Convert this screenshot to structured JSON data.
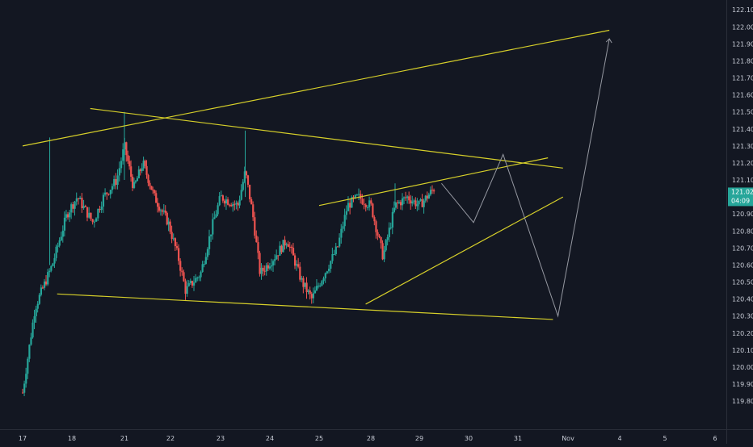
{
  "chart_data": {
    "type": "candlestick",
    "instrument_timeframe": "hourly",
    "ylim": [
      119.72,
      122.12
    ],
    "y_ticks": [
      "122.100",
      "122.000",
      "121.900",
      "121.800",
      "121.700",
      "121.600",
      "121.500",
      "121.400",
      "121.300",
      "121.200",
      "121.100",
      "121.000",
      "120.900",
      "120.800",
      "120.700",
      "120.600",
      "120.500",
      "120.400",
      "120.300",
      "120.200",
      "120.100",
      "120.000",
      "119.900",
      "119.800"
    ],
    "x_ticks": [
      {
        "label": "17",
        "day": 0
      },
      {
        "label": "18",
        "day": 1
      },
      {
        "label": "21",
        "day": 2
      },
      {
        "label": "22",
        "day": 3
      },
      {
        "label": "23",
        "day": 4
      },
      {
        "label": "24",
        "day": 5
      },
      {
        "label": "25",
        "day": 6
      },
      {
        "label": "28",
        "day": 7
      },
      {
        "label": "29",
        "day": 8
      },
      {
        "label": "30",
        "day": 9
      },
      {
        "label": "31",
        "day": 10
      },
      {
        "label": "Nov",
        "day": 11
      },
      {
        "label": "4",
        "day": 12
      },
      {
        "label": "5",
        "day": 13
      },
      {
        "label": "6",
        "day": 14
      }
    ],
    "current_price": {
      "value": "121.027",
      "countdown": "04:09",
      "y": 121.027
    },
    "colors": {
      "background": "#131722",
      "up": "#26a69a",
      "down": "#ef5350",
      "trendline": "#d6cf2a",
      "projection": "#9598a1",
      "axis_text": "#c8ccd6",
      "badge": "#26a69a"
    },
    "key_points": [
      {
        "day": 0.0,
        "price": 119.85
      },
      {
        "day": 0.25,
        "price": 120.35
      },
      {
        "day": 0.6,
        "price": 120.6
      },
      {
        "day": 0.9,
        "price": 120.9
      },
      {
        "day": 1.1,
        "price": 121.0
      },
      {
        "day": 1.4,
        "price": 120.85
      },
      {
        "day": 1.6,
        "price": 121.0
      },
      {
        "day": 1.85,
        "price": 121.1
      },
      {
        "day": 2.0,
        "price": 121.3
      },
      {
        "day": 2.2,
        "price": 121.05
      },
      {
        "day": 2.4,
        "price": 121.2
      },
      {
        "day": 2.65,
        "price": 121.0
      },
      {
        "day": 2.95,
        "price": 120.85
      },
      {
        "day": 3.15,
        "price": 120.65
      },
      {
        "day": 3.3,
        "price": 120.45
      },
      {
        "day": 3.6,
        "price": 120.55
      },
      {
        "day": 3.85,
        "price": 120.85
      },
      {
        "day": 4.0,
        "price": 121.0
      },
      {
        "day": 4.35,
        "price": 120.95
      },
      {
        "day": 4.5,
        "price": 121.15
      },
      {
        "day": 4.65,
        "price": 120.9
      },
      {
        "day": 4.8,
        "price": 120.55
      },
      {
        "day": 5.1,
        "price": 120.65
      },
      {
        "day": 5.35,
        "price": 120.75
      },
      {
        "day": 5.65,
        "price": 120.5
      },
      {
        "day": 5.85,
        "price": 120.4
      },
      {
        "day": 6.1,
        "price": 120.55
      },
      {
        "day": 6.35,
        "price": 120.7
      },
      {
        "day": 6.55,
        "price": 120.95
      },
      {
        "day": 6.75,
        "price": 121.0
      },
      {
        "day": 7.0,
        "price": 120.95
      },
      {
        "day": 7.25,
        "price": 120.65
      },
      {
        "day": 7.5,
        "price": 120.95
      },
      {
        "day": 7.75,
        "price": 121.0
      },
      {
        "day": 8.0,
        "price": 120.95
      },
      {
        "day": 8.3,
        "price": 121.05
      }
    ],
    "trendlines": [
      {
        "x1": 0,
        "y1": 121.3,
        "x2": 11.8,
        "y2": 121.98
      },
      {
        "x1": 1.35,
        "y1": 121.52,
        "x2": 10.9,
        "y2": 121.17
      },
      {
        "x1": 0.7,
        "y1": 120.43,
        "x2": 10.7,
        "y2": 120.28
      },
      {
        "x1": 6.0,
        "y1": 120.95,
        "x2": 10.6,
        "y2": 121.23
      },
      {
        "x1": 6.9,
        "y1": 120.37,
        "x2": 10.9,
        "y2": 121.0
      }
    ],
    "projection_path": [
      {
        "day": 8.45,
        "price": 121.08
      },
      {
        "day": 9.1,
        "price": 120.85
      },
      {
        "day": 9.7,
        "price": 121.25
      },
      {
        "day": 10.8,
        "price": 120.3
      },
      {
        "day": 11.8,
        "price": 121.93
      }
    ]
  }
}
